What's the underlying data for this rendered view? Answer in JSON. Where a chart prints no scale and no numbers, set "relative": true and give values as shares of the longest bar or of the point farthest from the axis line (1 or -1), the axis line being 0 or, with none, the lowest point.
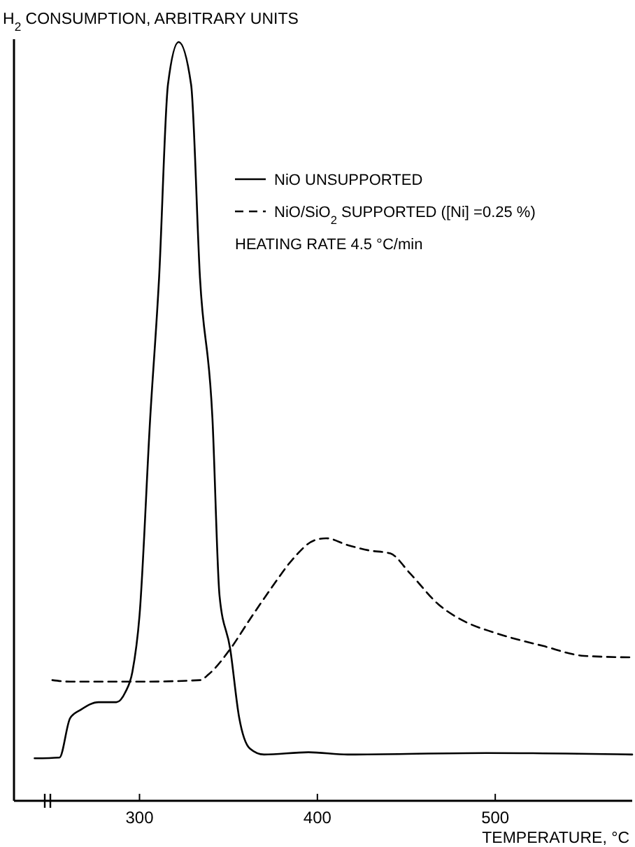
{
  "chart_data": {
    "type": "line",
    "ylabel": "H$_{2}$ CONSUMPTION, ARBITRARY UNITS",
    "xlabel": "TEMPERATURE, °C",
    "relative": true,
    "xlim": [
      231,
      577
    ],
    "xticks": [
      300,
      400,
      500
    ],
    "legend": "top right",
    "grid": false,
    "marker": "none",
    "annotations": [
      "HEATING RATE 4.5 °C/min"
    ],
    "series": [
      {
        "name": "NiO UNSUPPORTED",
        "color": "#000000",
        "line_style": "solid",
        "x": [
          241,
          255,
          261,
          267,
          277,
          287,
          292,
          296,
          300,
          306,
          311,
          316,
          322,
          329,
          334,
          341,
          345,
          351,
          356,
          362,
          370,
          395,
          417,
          495,
          577
        ],
        "values": [
          0.056,
          0.057,
          0.109,
          0.12,
          0.13,
          0.13,
          0.143,
          0.17,
          0.244,
          0.504,
          0.689,
          0.944,
          1.0,
          0.944,
          0.689,
          0.504,
          0.27,
          0.2,
          0.11,
          0.069,
          0.061,
          0.064,
          0.061,
          0.063,
          0.061
        ]
      },
      {
        "name": "NiO/SiO$_{2}$ SUPPORTED ([Ni] =0.25 %)",
        "color": "#000000",
        "line_style": "dashed",
        "x": [
          251,
          261,
          300,
          334,
          339,
          351,
          362,
          374,
          386,
          398,
          405,
          417,
          429,
          441,
          452,
          468,
          484,
          499,
          527,
          550,
          577
        ],
        "values": [
          0.159,
          0.157,
          0.157,
          0.159,
          0.167,
          0.2,
          0.239,
          0.28,
          0.318,
          0.343,
          0.346,
          0.337,
          0.33,
          0.326,
          0.3,
          0.259,
          0.235,
          0.222,
          0.204,
          0.191,
          0.189
        ]
      }
    ]
  }
}
